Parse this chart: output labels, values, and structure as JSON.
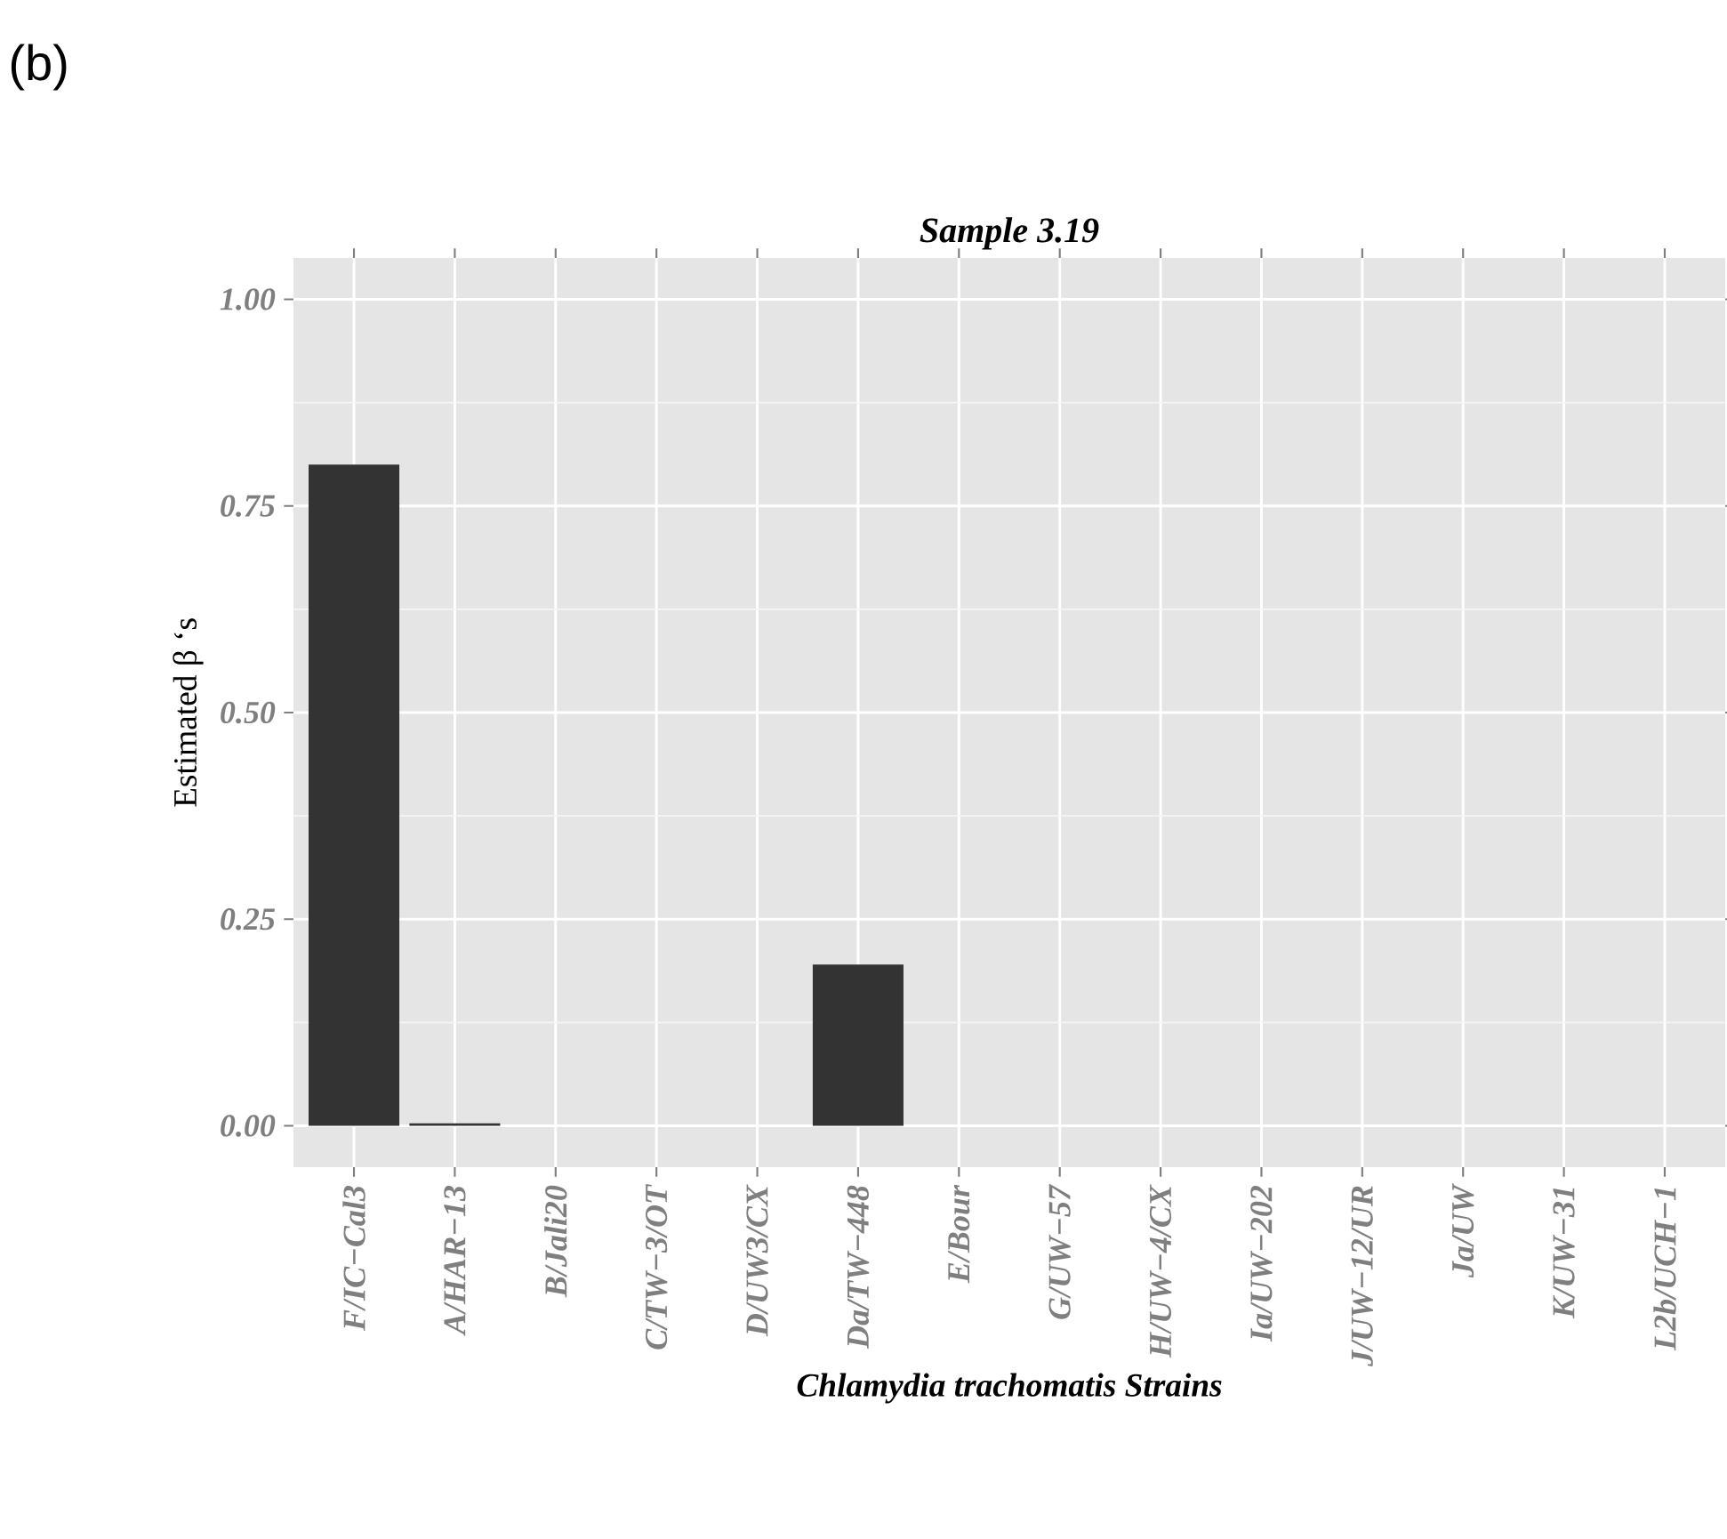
{
  "chart_data": {
    "type": "bar",
    "title": "Sample 3.19",
    "xlabel": "Chlamydia trachomatis Strains",
    "ylabel": "Estimated β ‘s",
    "annotations": [
      "(b)"
    ],
    "categories": [
      "F/IC−Cal3",
      "A/HAR−13",
      "B/Jali20",
      "C/TW−3/OT",
      "D/UW3/CX",
      "Da/TW−448",
      "E/Bour",
      "G/UW−57",
      "H/UW−4/CX",
      "Ia/UW−202",
      "J/UW−12/UR",
      "Ja/UW",
      "K/UW−31",
      "L2b/UCH−1"
    ],
    "values": [
      0.8,
      0.003,
      0,
      0,
      0,
      0.195,
      0,
      0,
      0,
      0,
      0,
      0,
      0,
      0
    ],
    "color": "#333333",
    "ylim": [
      -0.05,
      1.05
    ],
    "yticks": [
      {
        "value": 0,
        "label": "0.00"
      },
      {
        "value": 0.25,
        "label": "0.25"
      },
      {
        "value": 0.5,
        "label": "0.50"
      },
      {
        "value": 0.75,
        "label": "0.75"
      },
      {
        "value": 1,
        "label": "1.00"
      }
    ],
    "grid": true
  }
}
